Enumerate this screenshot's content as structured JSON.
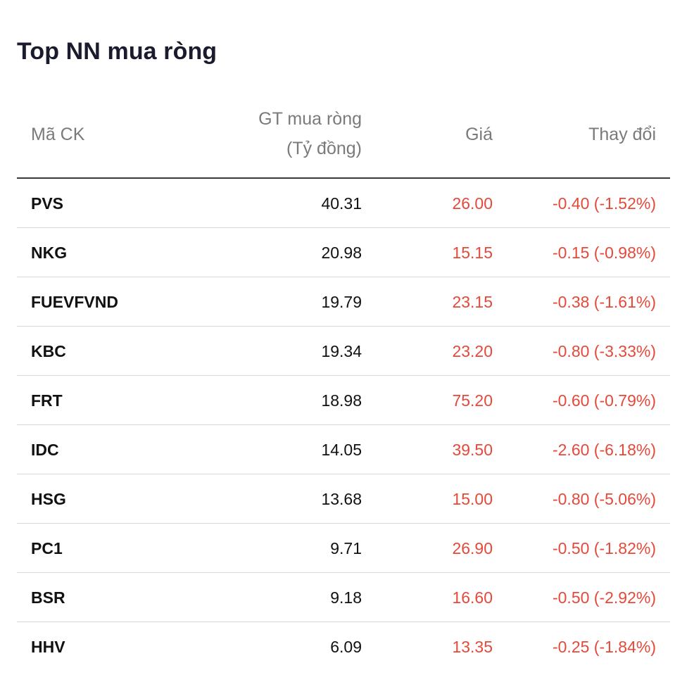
{
  "title": "Top NN mua ròng",
  "headers": {
    "code": "Mã CK",
    "value_line1": "GT mua ròng",
    "value_line2": "(Tỷ đồng)",
    "price": "Giá",
    "change": "Thay đổi"
  },
  "colors": {
    "down": "#e5493a",
    "text": "#111111",
    "header": "#7a7a7a"
  },
  "rows": [
    {
      "code": "PVS",
      "value": "40.31",
      "price": "26.00",
      "change": "-0.40 (-1.52%)"
    },
    {
      "code": "NKG",
      "value": "20.98",
      "price": "15.15",
      "change": "-0.15 (-0.98%)"
    },
    {
      "code": "FUEVFVND",
      "value": "19.79",
      "price": "23.15",
      "change": "-0.38 (-1.61%)"
    },
    {
      "code": "KBC",
      "value": "19.34",
      "price": "23.20",
      "change": "-0.80 (-3.33%)"
    },
    {
      "code": "FRT",
      "value": "18.98",
      "price": "75.20",
      "change": "-0.60 (-0.79%)"
    },
    {
      "code": "IDC",
      "value": "14.05",
      "price": "39.50",
      "change": "-2.60 (-6.18%)"
    },
    {
      "code": "HSG",
      "value": "13.68",
      "price": "15.00",
      "change": "-0.80 (-5.06%)"
    },
    {
      "code": "PC1",
      "value": "9.71",
      "price": "26.90",
      "change": "-0.50 (-1.82%)"
    },
    {
      "code": "BSR",
      "value": "9.18",
      "price": "16.60",
      "change": "-0.50 (-2.92%)"
    },
    {
      "code": "HHV",
      "value": "6.09",
      "price": "13.35",
      "change": "-0.25 (-1.84%)"
    }
  ]
}
